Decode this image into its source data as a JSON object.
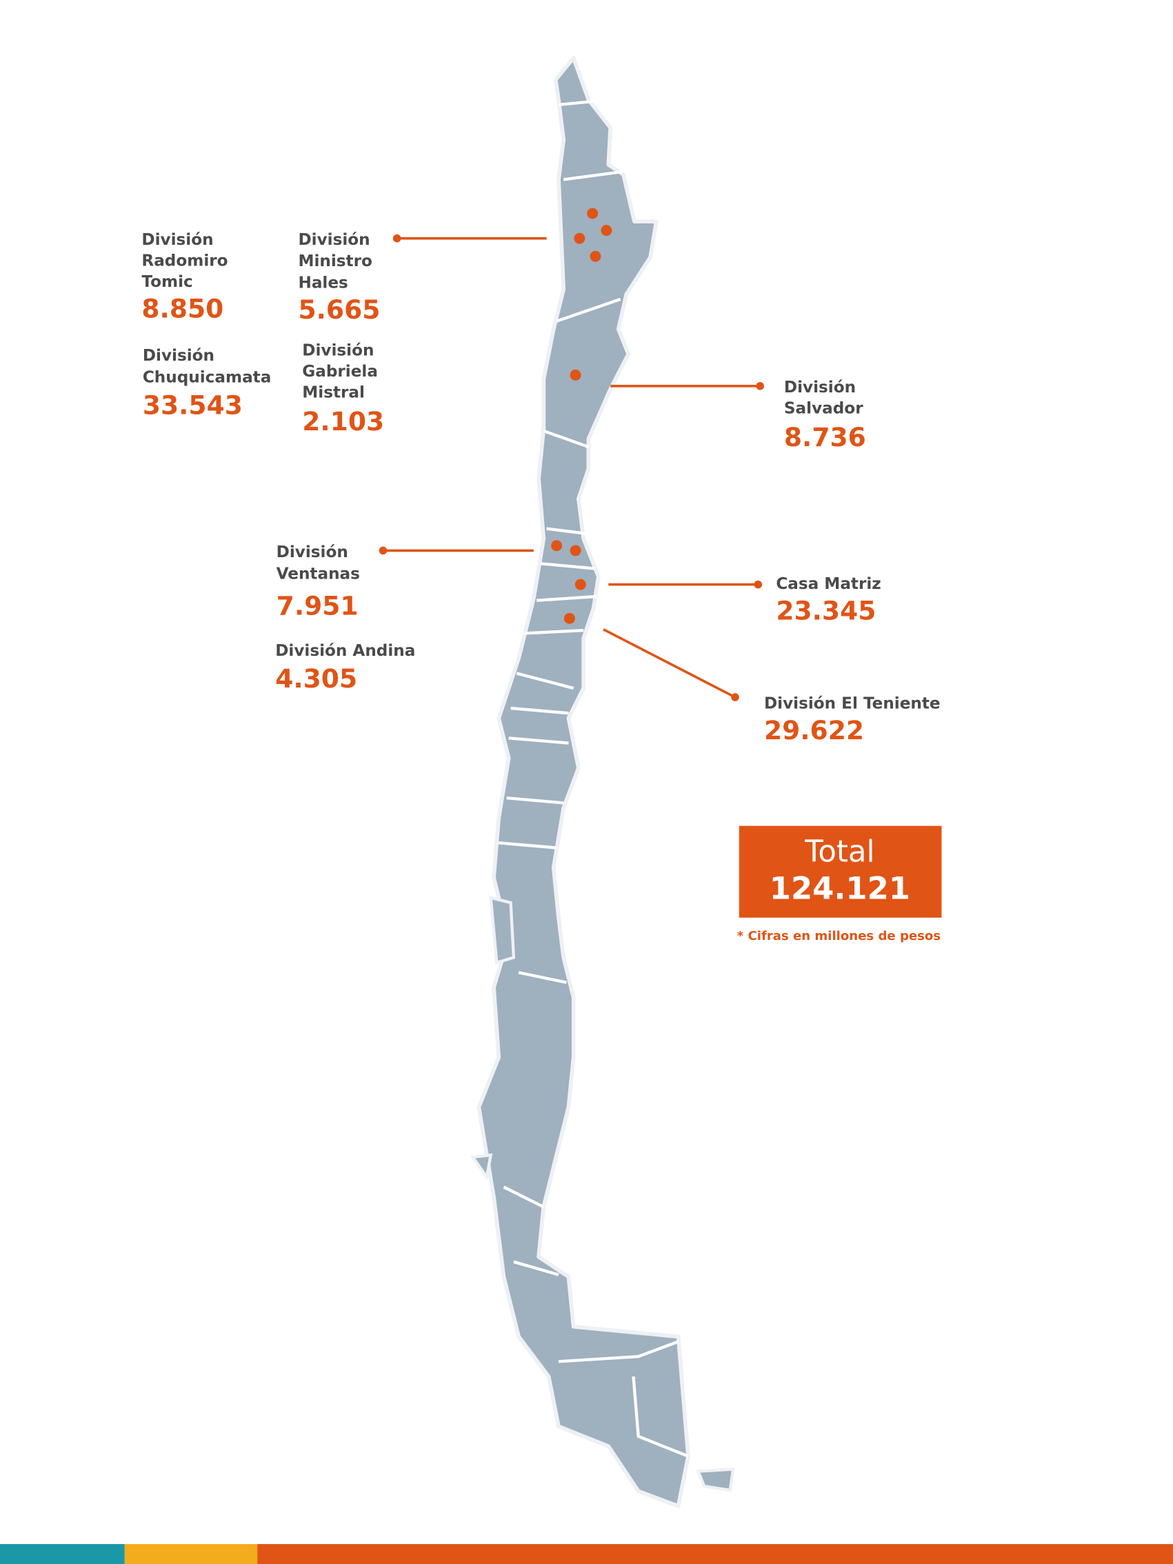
{
  "divisions": [
    {
      "name_lines": [
        "División",
        "Radomiro",
        "Tomic"
      ],
      "value": "8.850"
    },
    {
      "name_lines": [
        "División",
        "Ministro",
        "Hales"
      ],
      "value": "5.665"
    },
    {
      "name_lines": [
        "División",
        "Chuquicamata"
      ],
      "value": "33.543"
    },
    {
      "name_lines": [
        "División",
        "Gabriela",
        "Mistral"
      ],
      "value": "2.103"
    },
    {
      "name_lines": [
        "División",
        "Salvador"
      ],
      "value": "8.736"
    },
    {
      "name_lines": [
        "División",
        "Ventanas"
      ],
      "value": "7.951"
    },
    {
      "name_lines": [
        "División Andina"
      ],
      "value": "4.305"
    },
    {
      "name_lines": [
        "Casa Matriz"
      ],
      "value": "23.345"
    },
    {
      "name_lines": [
        "División El Teniente"
      ],
      "value": "29.622"
    }
  ],
  "total": {
    "label": "Total",
    "value": "124.121"
  },
  "footnote": "* Cifras en millones de pesos"
}
